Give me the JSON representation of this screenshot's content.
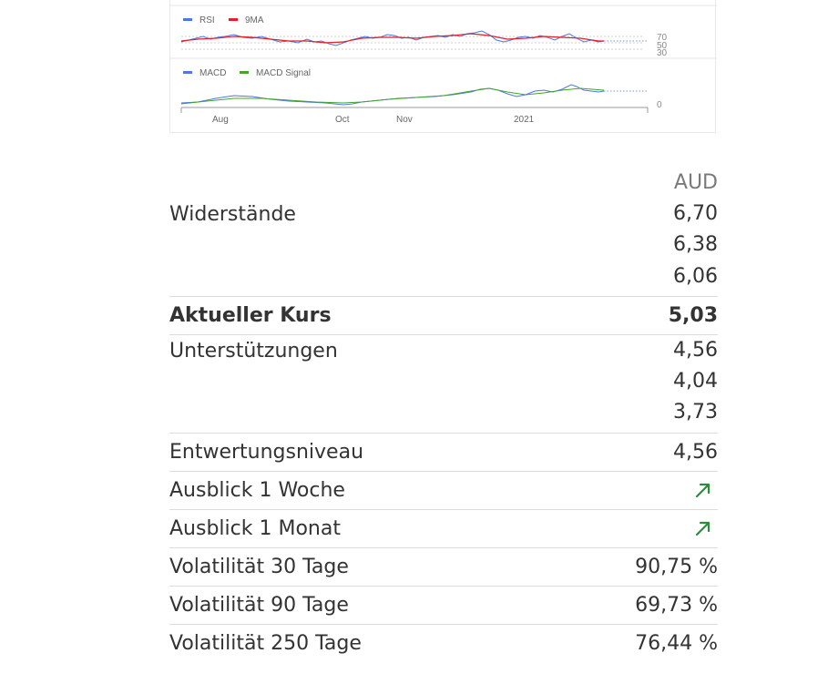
{
  "charts": {
    "rsi": {
      "legend": [
        {
          "name": "RSI",
          "color": "#4a78e6"
        },
        {
          "name": "9MA",
          "color": "#e0202a"
        }
      ],
      "ticks": [
        "70",
        "50",
        "30"
      ]
    },
    "macd": {
      "legend": [
        {
          "name": "MACD",
          "color": "#4a78e6"
        },
        {
          "name": "MACD Signal",
          "color": "#44a52a"
        }
      ],
      "zero_label": "0",
      "x_ticks": [
        "Aug",
        "Oct",
        "Nov",
        "2021"
      ]
    }
  },
  "levels": {
    "currency": "AUD",
    "resistances": {
      "label": "Widerstände",
      "values": [
        "6,70",
        "6,38",
        "6,06"
      ]
    },
    "current": {
      "label": "Aktueller Kurs",
      "value": "5,03"
    },
    "supports": {
      "label": "Unterstützungen",
      "values": [
        "4,56",
        "4,04",
        "3,73"
      ]
    },
    "invalidation": {
      "label": "Entwertungsniveau",
      "value": "4,56"
    },
    "outlook_week": {
      "label": "Ausblick 1 Woche",
      "icon": "arrow-up-right-icon",
      "color": "#2e8b3e"
    },
    "outlook_month": {
      "label": "Ausblick 1 Monat",
      "icon": "arrow-up-right-icon",
      "color": "#2e8b3e"
    },
    "vol30": {
      "label": "Volatilität 30 Tage",
      "value": "90,75 %"
    },
    "vol90": {
      "label": "Volatilität 90 Tage",
      "value": "69,73 %"
    },
    "vol250": {
      "label": "Volatilität 250 Tage",
      "value": "76,44 %"
    }
  }
}
